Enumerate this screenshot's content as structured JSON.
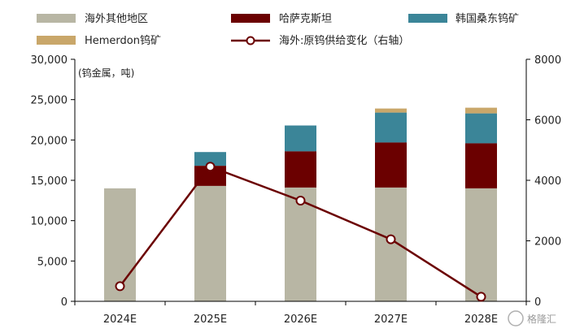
{
  "chart_data": {
    "type": "bar",
    "stacked": true,
    "categories": [
      "2024E",
      "2025E",
      "2026E",
      "2027E",
      "2028E"
    ],
    "series": [
      {
        "name": "海外其他地区",
        "color": "#b8b6a4",
        "values": [
          14000,
          14300,
          14100,
          14100,
          14000
        ]
      },
      {
        "name": "哈萨克斯坦",
        "color": "#6b0000",
        "values": [
          0,
          2500,
          4500,
          5600,
          5600
        ]
      },
      {
        "name": "韩国桑东钨矿",
        "color": "#3b8598",
        "values": [
          0,
          1700,
          3200,
          3700,
          3700
        ]
      },
      {
        "name": "Hemerdon钨矿",
        "color": "#c9a76a",
        "values": [
          0,
          0,
          0,
          500,
          700
        ]
      }
    ],
    "line_series": {
      "name": "海外:原钨供给变化（右轴）",
      "color": "#6b0000",
      "axis": "right",
      "values": [
        500,
        4450,
        3330,
        2050,
        150
      ]
    },
    "ylabel": "(钨金属，吨)",
    "ylim": [
      0,
      30000
    ],
    "yticks": [
      "0",
      "5,000",
      "10,000",
      "15,000",
      "20,000",
      "25,000",
      "30,000"
    ],
    "y2lim": [
      0,
      8000
    ],
    "y2ticks": [
      "0",
      "2000",
      "4000",
      "6000",
      "8000"
    ],
    "legend_position": "top",
    "grid": false
  },
  "watermark": "格隆汇"
}
